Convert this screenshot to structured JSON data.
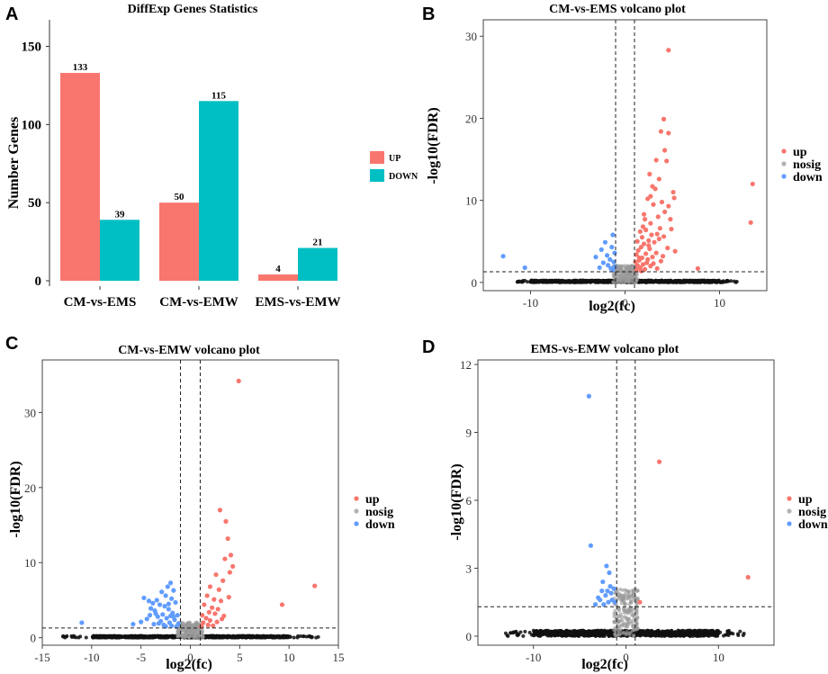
{
  "chart_data": [
    {
      "panel": "A",
      "type": "bar",
      "title": "DiffExp Genes Statistics",
      "xlabel": "",
      "ylabel": "Number Genes",
      "ylim": [
        0,
        160
      ],
      "yticks": [
        0,
        50,
        100,
        150
      ],
      "categories": [
        "CM-vs-EMS",
        "CM-vs-EMW",
        "EMS-vs-EMW"
      ],
      "series": [
        {
          "name": "UP",
          "color": "#f8766d",
          "values": [
            133,
            50,
            4
          ]
        },
        {
          "name": "DOWN",
          "color": "#00bfc4",
          "values": [
            39,
            115,
            21
          ]
        }
      ],
      "legend": "right"
    },
    {
      "panel": "B",
      "type": "scatter",
      "title": "CM-vs-EMS volcano plot",
      "xlabel": "log2(fc)",
      "ylabel": "-log10(FDR)",
      "xlim": [
        -15,
        15
      ],
      "ylim": [
        -1,
        32
      ],
      "xticks": [
        -10,
        0,
        10
      ],
      "yticks": [
        0,
        10,
        20,
        30
      ],
      "fc_threshold": [
        -1,
        1
      ],
      "fdr_threshold": 1.3,
      "legend": [
        "up",
        "nosig",
        "down"
      ],
      "colors": {
        "up": "#f8766d",
        "nosig": "#b3b3b3",
        "down": "#619cff"
      },
      "up_points": [
        [
          4.6,
          28.3
        ],
        [
          4.1,
          19.9
        ],
        [
          4.6,
          18.2
        ],
        [
          3.8,
          18.4
        ],
        [
          4.2,
          16.1
        ],
        [
          3.3,
          14.9
        ],
        [
          4.4,
          14.8
        ],
        [
          13.5,
          12.0
        ],
        [
          2.6,
          13.2
        ],
        [
          3.6,
          12.6
        ],
        [
          2.9,
          11.7
        ],
        [
          3.2,
          11.4
        ],
        [
          5.1,
          11.0
        ],
        [
          2.7,
          10.5
        ],
        [
          2.4,
          10.2
        ],
        [
          5.2,
          10.3
        ],
        [
          3.9,
          9.8
        ],
        [
          3.0,
          9.5
        ],
        [
          4.6,
          9.3
        ],
        [
          4.2,
          8.6
        ],
        [
          2.0,
          8.3
        ],
        [
          3.5,
          8.0
        ],
        [
          2.1,
          7.7
        ],
        [
          13.3,
          7.3
        ],
        [
          4.8,
          7.7
        ],
        [
          2.7,
          7.2
        ],
        [
          1.9,
          6.8
        ],
        [
          3.7,
          6.6
        ],
        [
          4.9,
          6.5
        ],
        [
          2.2,
          6.4
        ],
        [
          1.6,
          6.2
        ],
        [
          3.4,
          5.9
        ],
        [
          2.8,
          5.8
        ],
        [
          1.8,
          5.5
        ],
        [
          4.1,
          5.6
        ],
        [
          2.5,
          5.1
        ],
        [
          1.3,
          5.0
        ],
        [
          2.0,
          4.7
        ],
        [
          3.1,
          4.9
        ],
        [
          1.7,
          4.3
        ],
        [
          2.6,
          4.1
        ],
        [
          1.4,
          3.9
        ],
        [
          4.5,
          4.2
        ],
        [
          2.2,
          3.5
        ],
        [
          1.2,
          3.4
        ],
        [
          3.3,
          3.6
        ],
        [
          1.8,
          3.0
        ],
        [
          2.9,
          3.1
        ],
        [
          1.5,
          2.7
        ],
        [
          2.4,
          2.8
        ],
        [
          1.1,
          2.5
        ],
        [
          3.8,
          2.6
        ],
        [
          1.9,
          2.2
        ],
        [
          1.3,
          2.1
        ],
        [
          2.7,
          2.0
        ],
        [
          1.6,
          1.8
        ],
        [
          2.1,
          1.6
        ],
        [
          1.2,
          1.5
        ],
        [
          3.4,
          1.7
        ],
        [
          7.7,
          1.7
        ],
        [
          1.7,
          1.4
        ],
        [
          2.3,
          2.4
        ],
        [
          3.0,
          2.3
        ],
        [
          1.4,
          1.9
        ],
        [
          5.3,
          3.8
        ],
        [
          4.0,
          3.2
        ],
        [
          2.5,
          4.5
        ],
        [
          3.6,
          5.3
        ],
        [
          1.5,
          3.0
        ]
      ],
      "down_points": [
        [
          -12.9,
          3.2
        ],
        [
          -10.6,
          1.8
        ],
        [
          -1.3,
          5.8
        ],
        [
          -2.1,
          4.9
        ],
        [
          -1.4,
          4.3
        ],
        [
          -2.5,
          4.0
        ],
        [
          -1.1,
          3.6
        ],
        [
          -1.9,
          3.3
        ],
        [
          -3.1,
          3.1
        ],
        [
          -1.6,
          2.8
        ],
        [
          -1.2,
          2.5
        ],
        [
          -2.3,
          2.4
        ],
        [
          -1.8,
          2.1
        ],
        [
          -1.1,
          1.9
        ],
        [
          -2.7,
          1.8
        ],
        [
          -1.5,
          1.7
        ],
        [
          -1.3,
          1.5
        ]
      ]
    },
    {
      "panel": "C",
      "type": "scatter",
      "title": "CM-vs-EMW volcano plot",
      "xlabel": "log2(fc)",
      "ylabel": "-log10(FDR)",
      "xlim": [
        -15,
        15
      ],
      "ylim": [
        -1,
        37
      ],
      "xticks": [
        -15,
        -10,
        -5,
        0,
        5,
        10,
        15
      ],
      "yticks": [
        0,
        10,
        20,
        30
      ],
      "fc_threshold": [
        -1,
        1
      ],
      "fdr_threshold": 1.3,
      "legend": [
        "up",
        "nosig",
        "down"
      ],
      "colors": {
        "up": "#f8766d",
        "nosig": "#b3b3b3",
        "down": "#619cff"
      },
      "up_points": [
        [
          4.9,
          34.2
        ],
        [
          3.0,
          17.0
        ],
        [
          3.6,
          15.5
        ],
        [
          3.8,
          13.2
        ],
        [
          4.1,
          11.0
        ],
        [
          3.5,
          10.5
        ],
        [
          4.3,
          9.5
        ],
        [
          4.0,
          8.7
        ],
        [
          2.6,
          8.4
        ],
        [
          3.3,
          7.6
        ],
        [
          12.6,
          6.9
        ],
        [
          2.0,
          6.8
        ],
        [
          2.9,
          6.4
        ],
        [
          3.9,
          5.4
        ],
        [
          9.3,
          4.4
        ],
        [
          1.7,
          5.6
        ],
        [
          2.4,
          5.1
        ],
        [
          3.1,
          4.9
        ],
        [
          1.4,
          4.4
        ],
        [
          2.2,
          4.0
        ],
        [
          2.8,
          3.8
        ],
        [
          1.9,
          3.4
        ],
        [
          1.2,
          3.0
        ],
        [
          2.5,
          3.2
        ],
        [
          3.4,
          2.9
        ],
        [
          1.6,
          2.6
        ],
        [
          2.0,
          2.3
        ],
        [
          1.3,
          2.0
        ],
        [
          2.7,
          2.1
        ],
        [
          1.8,
          1.7
        ],
        [
          1.1,
          1.5
        ],
        [
          3.2,
          2.5
        ],
        [
          2.3,
          1.6
        ]
      ],
      "down_points": [
        [
          -11.0,
          2.0
        ],
        [
          -5.8,
          1.8
        ],
        [
          -2.0,
          7.3
        ],
        [
          -2.3,
          6.8
        ],
        [
          -1.7,
          6.3
        ],
        [
          -2.9,
          6.1
        ],
        [
          -4.7,
          5.3
        ],
        [
          -4.2,
          4.9
        ],
        [
          -3.4,
          5.0
        ],
        [
          -3.8,
          4.6
        ],
        [
          -2.5,
          5.6
        ],
        [
          -1.9,
          5.2
        ],
        [
          -3.1,
          4.4
        ],
        [
          -2.6,
          4.2
        ],
        [
          -1.5,
          4.7
        ],
        [
          -4.0,
          3.9
        ],
        [
          -3.6,
          3.6
        ],
        [
          -2.2,
          3.8
        ],
        [
          -1.8,
          3.3
        ],
        [
          -2.8,
          3.1
        ],
        [
          -3.3,
          2.8
        ],
        [
          -1.3,
          3.0
        ],
        [
          -4.4,
          2.5
        ],
        [
          -2.4,
          2.6
        ],
        [
          -1.6,
          2.4
        ],
        [
          -3.0,
          2.2
        ],
        [
          -2.1,
          2.0
        ],
        [
          -1.2,
          1.9
        ],
        [
          -3.7,
          1.8
        ],
        [
          -2.7,
          1.7
        ],
        [
          -1.9,
          1.6
        ],
        [
          -1.4,
          1.5
        ],
        [
          -5.0,
          2.1
        ],
        [
          -3.5,
          3.2
        ],
        [
          -2.2,
          4.5
        ],
        [
          -1.7,
          2.8
        ],
        [
          -2.5,
          1.5
        ],
        [
          -4.1,
          3.0
        ],
        [
          -3.2,
          1.9
        ],
        [
          -2.0,
          2.9
        ]
      ]
    },
    {
      "panel": "D",
      "type": "scatter",
      "title": "EMS-vs-EMW volcano plot",
      "xlabel": "log2(fc)",
      "ylabel": "-log10(FDR)",
      "xlim": [
        -16,
        16
      ],
      "ylim": [
        -0.4,
        12.2
      ],
      "xticks": [
        -10,
        0,
        10
      ],
      "yticks": [
        0,
        3,
        6,
        9,
        12
      ],
      "fc_threshold": [
        -1,
        1
      ],
      "fdr_threshold": 1.3,
      "legend": [
        "up",
        "nosig",
        "down"
      ],
      "colors": {
        "up": "#f8766d",
        "nosig": "#b3b3b3",
        "down": "#619cff"
      },
      "up_points": [
        [
          3.6,
          7.7
        ],
        [
          13.2,
          2.6
        ],
        [
          1.5,
          1.5
        ]
      ],
      "down_points": [
        [
          -4.0,
          10.6
        ],
        [
          -3.8,
          4.0
        ],
        [
          -2.1,
          3.1
        ],
        [
          -2.5,
          2.4
        ],
        [
          -2.0,
          2.0
        ],
        [
          -1.6,
          1.9
        ],
        [
          -2.8,
          1.6
        ],
        [
          -1.3,
          2.1
        ],
        [
          -1.9,
          1.5
        ],
        [
          -3.0,
          1.7
        ],
        [
          -1.5,
          1.6
        ],
        [
          -2.4,
          1.4
        ],
        [
          -1.7,
          2.2
        ],
        [
          -3.3,
          1.4
        ],
        [
          -1.2,
          1.5
        ],
        [
          -1.8,
          2.8
        ],
        [
          -2.2,
          1.8
        ],
        [
          -2.6,
          2.0
        ]
      ]
    }
  ],
  "panel_letters": [
    "A",
    "B",
    "C",
    "D"
  ]
}
